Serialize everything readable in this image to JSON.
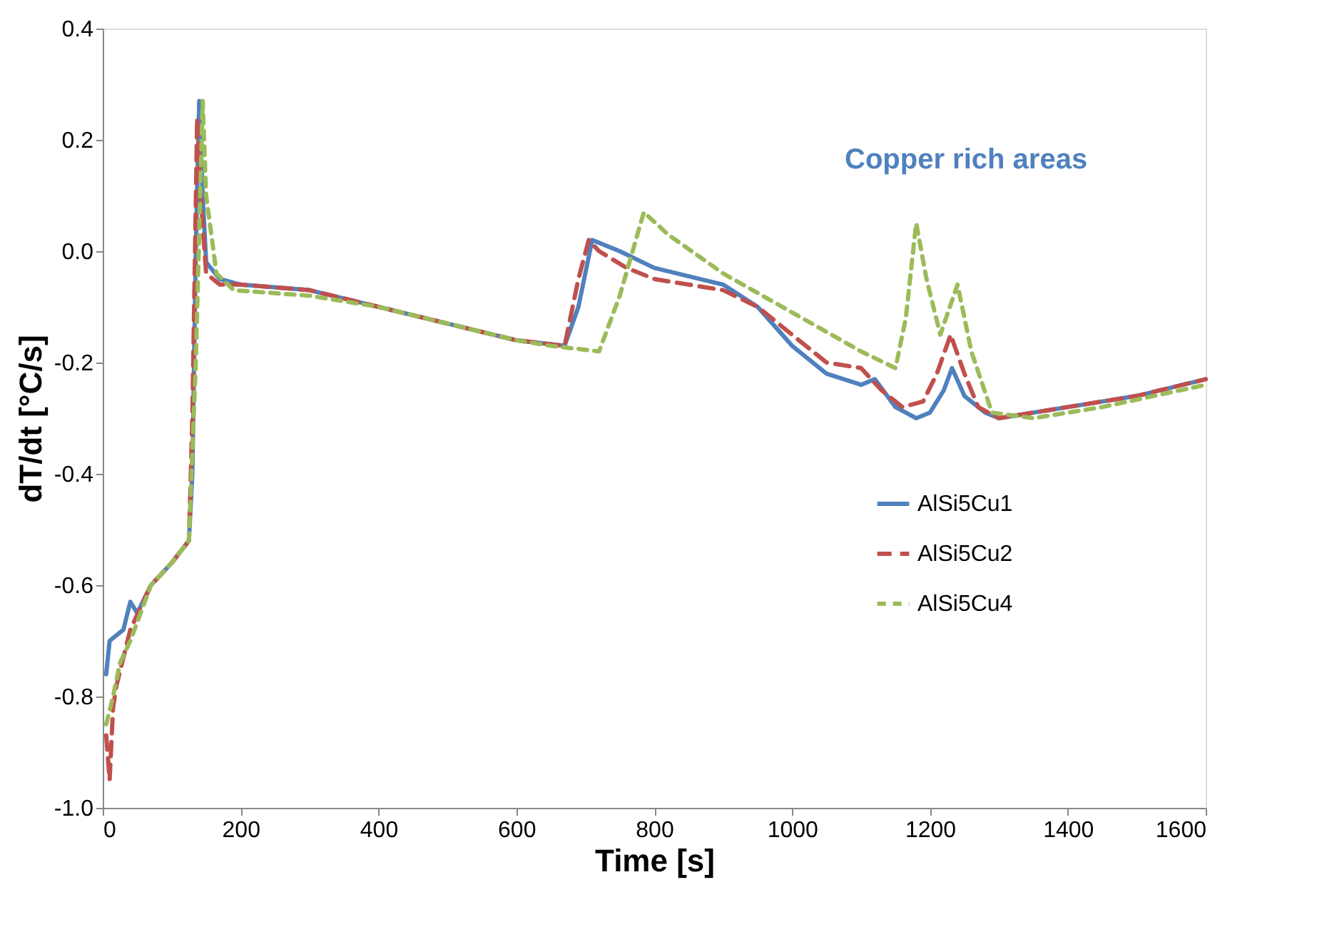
{
  "chart_data": {
    "type": "line",
    "xlabel": "Time [s]",
    "ylabel": "dT/dt [°C/s]",
    "annotations": [
      "Copper rich areas"
    ],
    "xlim": [
      0,
      1600
    ],
    "xticks": [
      0,
      200,
      400,
      600,
      800,
      1000,
      1200,
      1400,
      1600
    ],
    "ylim": [
      -1.0,
      0.4
    ],
    "yticks": [
      {
        "value": -1.0,
        "label": "-1.0"
      },
      {
        "value": -0.8,
        "label": "-0.8"
      },
      {
        "value": -0.6,
        "label": "-0.6"
      },
      {
        "value": -0.4,
        "label": "-0.4"
      },
      {
        "value": -0.2,
        "label": "-0.2"
      },
      {
        "value": 0.0,
        "label": "0.0"
      },
      {
        "value": 0.2,
        "label": "0.2"
      },
      {
        "value": 0.4,
        "label": "0.4"
      }
    ],
    "grid": false,
    "legend": "bottom right",
    "marker": "none",
    "series": [
      {
        "name": "AlSi5Cu1",
        "color": "#4f81bd",
        "line_style": "solid",
        "x": [
          5,
          10,
          20,
          30,
          40,
          50,
          70,
          100,
          125,
          130,
          135,
          140,
          145,
          150,
          170,
          200,
          300,
          400,
          500,
          600,
          670,
          690,
          710,
          750,
          800,
          900,
          950,
          1000,
          1050,
          1100,
          1120,
          1150,
          1180,
          1200,
          1220,
          1232,
          1250,
          1280,
          1300,
          1400,
          1500,
          1600
        ],
        "values": [
          -0.76,
          -0.7,
          -0.69,
          -0.68,
          -0.63,
          -0.65,
          -0.6,
          -0.56,
          -0.52,
          -0.4,
          0.0,
          0.27,
          0.1,
          -0.02,
          -0.05,
          -0.06,
          -0.07,
          -0.1,
          -0.13,
          -0.16,
          -0.17,
          -0.1,
          0.02,
          0.0,
          -0.03,
          -0.06,
          -0.1,
          -0.17,
          -0.22,
          -0.24,
          -0.23,
          -0.28,
          -0.3,
          -0.29,
          -0.25,
          -0.21,
          -0.26,
          -0.29,
          -0.3,
          -0.28,
          -0.26,
          -0.23
        ]
      },
      {
        "name": "AlSi5Cu2",
        "color": "#c0504d",
        "line_style": "dashed",
        "x": [
          5,
          10,
          15,
          20,
          40,
          70,
          100,
          125,
          130,
          137,
          142,
          150,
          170,
          200,
          300,
          400,
          500,
          600,
          670,
          690,
          705,
          720,
          760,
          800,
          900,
          950,
          1000,
          1050,
          1100,
          1130,
          1160,
          1190,
          1210,
          1230,
          1250,
          1270,
          1300,
          1400,
          1500,
          1600
        ],
        "values": [
          -0.87,
          -0.95,
          -0.82,
          -0.78,
          -0.68,
          -0.6,
          -0.56,
          -0.52,
          -0.3,
          0.24,
          0.1,
          -0.04,
          -0.06,
          -0.06,
          -0.07,
          -0.1,
          -0.13,
          -0.16,
          -0.17,
          -0.05,
          0.02,
          0.0,
          -0.03,
          -0.05,
          -0.07,
          -0.1,
          -0.15,
          -0.2,
          -0.21,
          -0.25,
          -0.28,
          -0.27,
          -0.22,
          -0.15,
          -0.22,
          -0.28,
          -0.3,
          -0.28,
          -0.26,
          -0.23
        ]
      },
      {
        "name": "AlSi5Cu4",
        "color": "#9bbb59",
        "line_style": "dotted",
        "x": [
          5,
          15,
          25,
          40,
          70,
          100,
          125,
          135,
          145,
          150,
          165,
          190,
          300,
          400,
          500,
          600,
          650,
          720,
          750,
          785,
          820,
          900,
          1000,
          1100,
          1150,
          1165,
          1180,
          1195,
          1215,
          1240,
          1260,
          1290,
          1350,
          1450,
          1600
        ],
        "values": [
          -0.85,
          -0.8,
          -0.74,
          -0.7,
          -0.6,
          -0.56,
          -0.52,
          -0.2,
          0.27,
          0.1,
          -0.04,
          -0.07,
          -0.08,
          -0.1,
          -0.13,
          -0.16,
          -0.17,
          -0.18,
          -0.08,
          0.07,
          0.03,
          -0.04,
          -0.11,
          -0.18,
          -0.21,
          -0.12,
          0.05,
          -0.05,
          -0.15,
          -0.06,
          -0.18,
          -0.29,
          -0.3,
          -0.28,
          -0.24
        ]
      }
    ]
  }
}
